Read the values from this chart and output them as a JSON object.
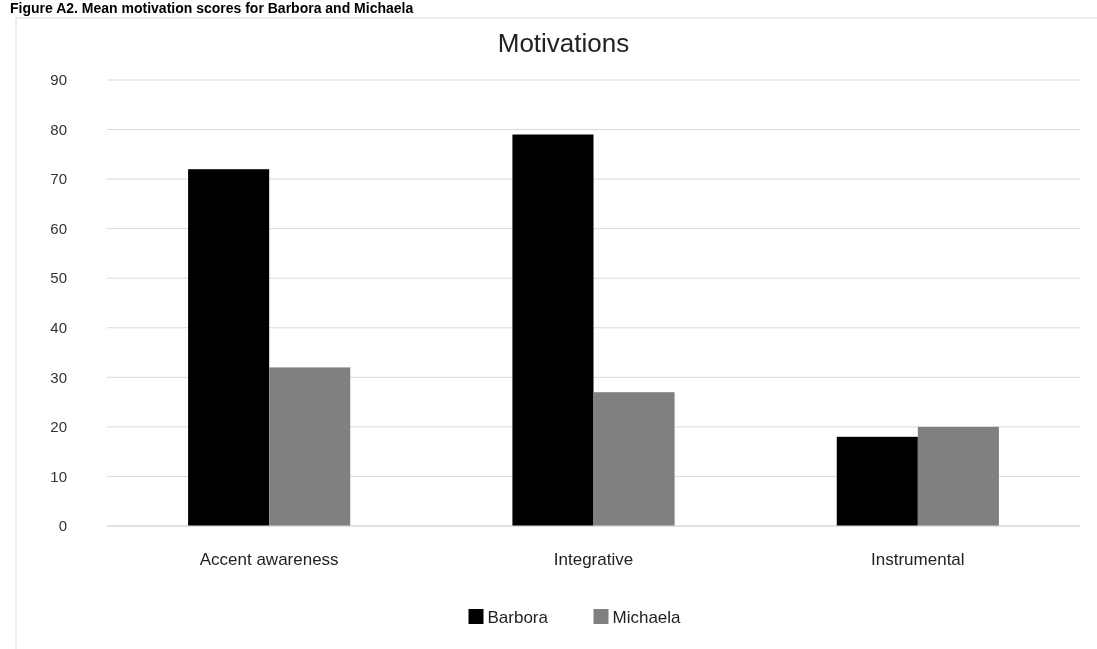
{
  "chart_data": {
    "type": "bar",
    "title": "Motivations",
    "annotations": [
      "Figure A2. Mean motivation scores for Barbora and Michaela"
    ],
    "categories": [
      "Accent awareness",
      "Integrative",
      "Instrumental"
    ],
    "series": [
      {
        "name": "Barbora",
        "color": "#000000",
        "values": [
          72,
          79,
          18
        ]
      },
      {
        "name": "Michaela",
        "color": "#808080",
        "values": [
          32,
          27,
          20
        ]
      }
    ],
    "ylim": [
      0,
      90
    ],
    "yticks": [
      0,
      10,
      20,
      30,
      40,
      50,
      60,
      70,
      80,
      90
    ],
    "grid": "y",
    "legend": "bottom"
  }
}
